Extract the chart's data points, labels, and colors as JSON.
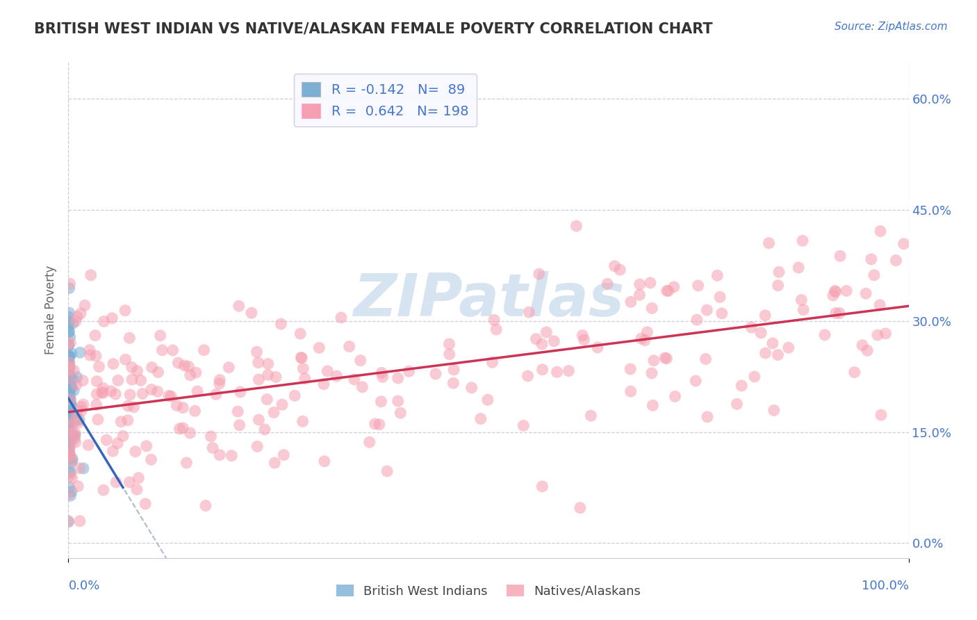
{
  "title": "BRITISH WEST INDIAN VS NATIVE/ALASKAN FEMALE POVERTY CORRELATION CHART",
  "source": "Source: ZipAtlas.com",
  "ylabel": "Female Poverty",
  "xlim": [
    0.0,
    1.0
  ],
  "ylim": [
    -0.02,
    0.65
  ],
  "yticks": [
    0.0,
    0.15,
    0.3,
    0.45,
    0.6
  ],
  "ytick_labels": [
    "0.0%",
    "15.0%",
    "30.0%",
    "45.0%",
    "60.0%"
  ],
  "xtick_left": "0.0%",
  "xtick_right": "100.0%",
  "legend_r1": "R = -0.142",
  "legend_n1": "N=  89",
  "legend_r2": "R =  0.642",
  "legend_n2": "N= 198",
  "color_blue": "#7BAFD4",
  "color_pink": "#F5A0B0",
  "color_line_blue": "#3366BB",
  "color_line_pink": "#CC3355",
  "color_line_dashed": "#AABBCC",
  "watermark_text": "ZIPatlas",
  "watermark_color": "#C5D8EC",
  "background_color": "#FFFFFF",
  "grid_color": "#C8C8D8",
  "title_color": "#333333",
  "axis_label_color": "#666666",
  "tick_label_color": "#4477CC",
  "legend_label_color": "#4477CC",
  "legend_edge_color": "#CCCCDD",
  "legend_face_color": "#F8F8FF",
  "n_blue": 89,
  "n_pink": 198,
  "R_blue": -0.142,
  "R_pink": 0.642,
  "pink_intercept": 0.175,
  "pink_slope": 0.16,
  "blue_intercept": 0.205,
  "blue_slope": -0.55
}
